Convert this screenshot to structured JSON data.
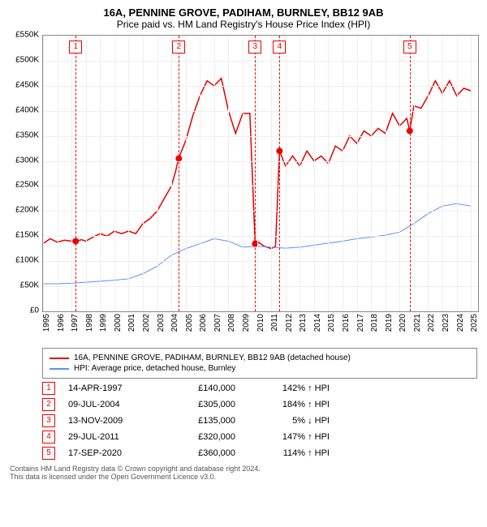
{
  "title": "16A, PENNINE GROVE, PADIHAM, BURNLEY, BB12 9AB",
  "subtitle": "Price paid vs. HM Land Registry's House Price Index (HPI)",
  "chart": {
    "type": "line",
    "background_color": "#ffffff",
    "grid_color": "#eeeeee",
    "border_color": "#888888",
    "xlim": [
      1995,
      2025.5
    ],
    "ylim": [
      0,
      550000
    ],
    "ytick_step": 50000,
    "yticks": [
      "£0",
      "£50K",
      "£100K",
      "£150K",
      "£200K",
      "£250K",
      "£300K",
      "£350K",
      "£400K",
      "£450K",
      "£500K",
      "£550K"
    ],
    "xticks": [
      1995,
      1996,
      1997,
      1998,
      1999,
      2000,
      2001,
      2002,
      2003,
      2004,
      2005,
      2006,
      2007,
      2008,
      2009,
      2010,
      2011,
      2012,
      2013,
      2014,
      2015,
      2016,
      2017,
      2018,
      2019,
      2020,
      2021,
      2022,
      2023,
      2024,
      2025
    ],
    "label_fontsize": 10,
    "series": [
      {
        "name": "16A, PENNINE GROVE, PADIHAM, BURNLEY, BB12 9AB (detached house)",
        "color": "#e00000",
        "line_width": 1.5,
        "points": [
          [
            1995,
            135000
          ],
          [
            1995.5,
            145000
          ],
          [
            1996,
            138000
          ],
          [
            1996.5,
            142000
          ],
          [
            1997,
            140000
          ],
          [
            1997.3,
            140000
          ],
          [
            1997.7,
            143000
          ],
          [
            1998,
            140000
          ],
          [
            1998.5,
            148000
          ],
          [
            1999,
            155000
          ],
          [
            1999.5,
            150000
          ],
          [
            2000,
            160000
          ],
          [
            2000.5,
            155000
          ],
          [
            2001,
            160000
          ],
          [
            2001.5,
            155000
          ],
          [
            2002,
            175000
          ],
          [
            2002.5,
            185000
          ],
          [
            2003,
            200000
          ],
          [
            2003.5,
            225000
          ],
          [
            2004,
            250000
          ],
          [
            2004.3,
            280000
          ],
          [
            2004.5,
            305000
          ],
          [
            2005,
            340000
          ],
          [
            2005.5,
            390000
          ],
          [
            2006,
            430000
          ],
          [
            2006.5,
            460000
          ],
          [
            2007,
            450000
          ],
          [
            2007.5,
            465000
          ],
          [
            2008,
            400000
          ],
          [
            2008.5,
            355000
          ],
          [
            2009,
            395000
          ],
          [
            2009.5,
            395000
          ],
          [
            2009.87,
            135000
          ],
          [
            2010,
            140000
          ],
          [
            2010.5,
            130000
          ],
          [
            2011,
            125000
          ],
          [
            2011.3,
            130000
          ],
          [
            2011.58,
            320000
          ],
          [
            2012,
            290000
          ],
          [
            2012.5,
            310000
          ],
          [
            2013,
            290000
          ],
          [
            2013.5,
            320000
          ],
          [
            2014,
            300000
          ],
          [
            2014.5,
            310000
          ],
          [
            2015,
            295000
          ],
          [
            2015.5,
            330000
          ],
          [
            2016,
            320000
          ],
          [
            2016.5,
            350000
          ],
          [
            2017,
            335000
          ],
          [
            2017.5,
            360000
          ],
          [
            2018,
            350000
          ],
          [
            2018.5,
            365000
          ],
          [
            2019,
            355000
          ],
          [
            2019.5,
            395000
          ],
          [
            2020,
            370000
          ],
          [
            2020.5,
            385000
          ],
          [
            2020.71,
            360000
          ],
          [
            2021,
            410000
          ],
          [
            2021.5,
            405000
          ],
          [
            2022,
            430000
          ],
          [
            2022.5,
            460000
          ],
          [
            2023,
            435000
          ],
          [
            2023.5,
            460000
          ],
          [
            2024,
            430000
          ],
          [
            2024.5,
            445000
          ],
          [
            2025,
            440000
          ]
        ]
      },
      {
        "name": "HPI: Average price, detached house, Burnley",
        "color": "#5b8ff9",
        "line_width": 1,
        "points": [
          [
            1995,
            55000
          ],
          [
            1996,
            55000
          ],
          [
            1997,
            56000
          ],
          [
            1998,
            58000
          ],
          [
            1999,
            60000
          ],
          [
            2000,
            62000
          ],
          [
            2001,
            65000
          ],
          [
            2002,
            75000
          ],
          [
            2003,
            90000
          ],
          [
            2004,
            112000
          ],
          [
            2005,
            125000
          ],
          [
            2006,
            135000
          ],
          [
            2007,
            145000
          ],
          [
            2008,
            140000
          ],
          [
            2009,
            128000
          ],
          [
            2010,
            130000
          ],
          [
            2011,
            128000
          ],
          [
            2012,
            126000
          ],
          [
            2013,
            128000
          ],
          [
            2014,
            132000
          ],
          [
            2015,
            136000
          ],
          [
            2016,
            140000
          ],
          [
            2017,
            145000
          ],
          [
            2018,
            148000
          ],
          [
            2019,
            152000
          ],
          [
            2020,
            158000
          ],
          [
            2021,
            175000
          ],
          [
            2022,
            195000
          ],
          [
            2023,
            210000
          ],
          [
            2024,
            215000
          ],
          [
            2025,
            210000
          ]
        ]
      }
    ],
    "events": [
      {
        "n": "1",
        "x": 1997.29,
        "date": "14-APR-1997",
        "price": "£140,000",
        "pct": "142% ↑ HPI",
        "marker_y": 140000
      },
      {
        "n": "2",
        "x": 2004.52,
        "date": "09-JUL-2004",
        "price": "£305,000",
        "pct": "184% ↑ HPI",
        "marker_y": 305000
      },
      {
        "n": "3",
        "x": 2009.87,
        "date": "13-NOV-2009",
        "price": "£135,000",
        "pct": "5% ↓ HPI",
        "marker_y": 135000
      },
      {
        "n": "4",
        "x": 2011.58,
        "date": "29-JUL-2011",
        "price": "£320,000",
        "pct": "147% ↑ HPI",
        "marker_y": 320000
      },
      {
        "n": "5",
        "x": 2020.71,
        "date": "17-SEP-2020",
        "price": "£360,000",
        "pct": "114% ↑ HPI",
        "marker_y": 360000
      }
    ],
    "event_line_color": "#e00000",
    "event_box_border": "#e00000"
  },
  "legend": {
    "items": [
      {
        "color": "#e00000",
        "label": "16A, PENNINE GROVE, PADIHAM, BURNLEY, BB12 9AB (detached house)"
      },
      {
        "color": "#5b8ff9",
        "label": "HPI: Average price, detached house, Burnley"
      }
    ]
  },
  "footer_line1": "Contains HM Land Registry data © Crown copyright and database right 2024.",
  "footer_line2": "This data is licensed under the Open Government Licence v3.0."
}
